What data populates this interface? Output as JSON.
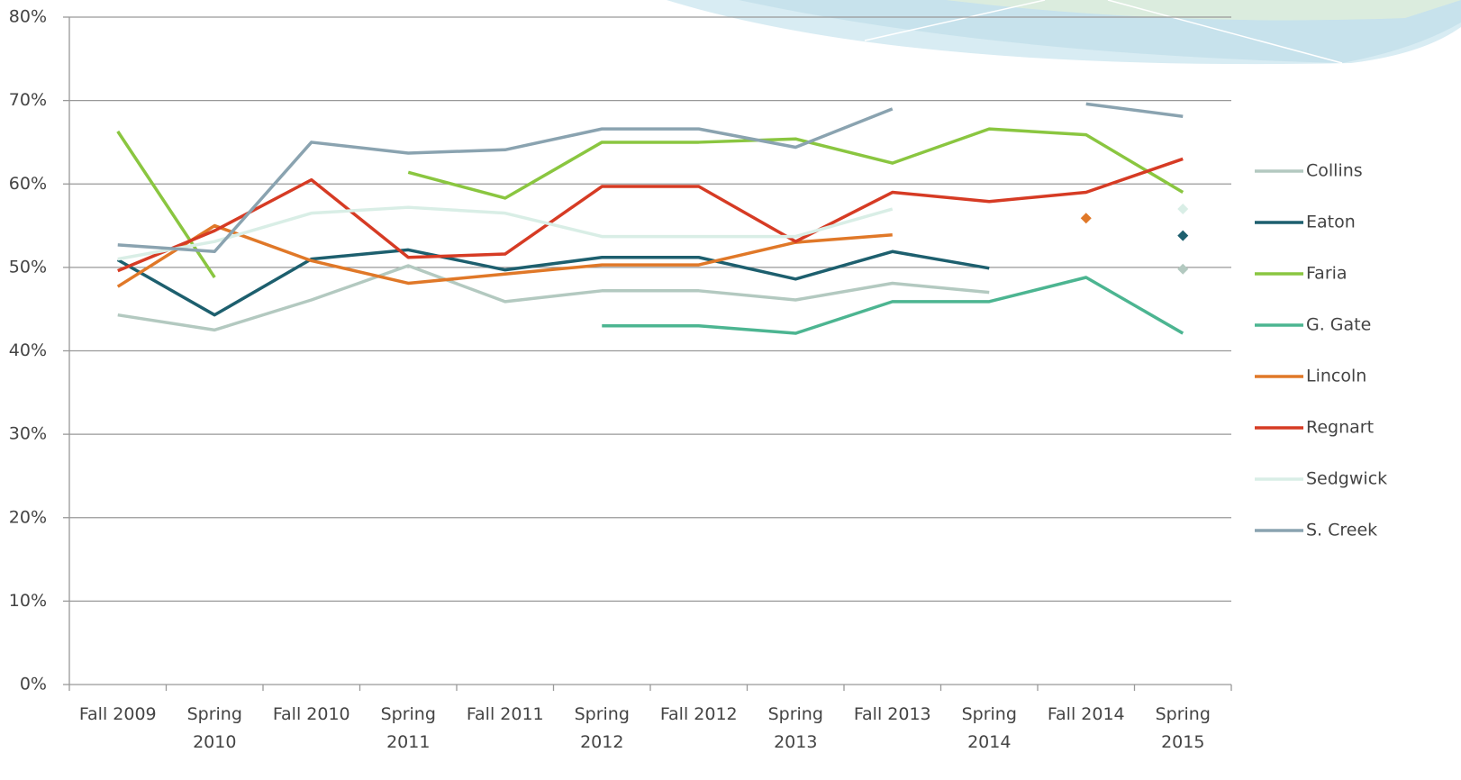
{
  "chart_data": {
    "type": "line",
    "categories": [
      "Fall 2009",
      "Spring 2010",
      "Fall 2010",
      "Spring 2011",
      "Fall 2011",
      "Spring 2012",
      "Fall 2012",
      "Spring 2013",
      "Fall 2013",
      "Spring 2014",
      "Fall 2014",
      "Spring 2015"
    ],
    "series": [
      {
        "name": "Collins",
        "color": "#b3c9c0",
        "values": [
          44.3,
          42.5,
          46.1,
          50.2,
          45.9,
          47.2,
          47.2,
          46.1,
          48.1,
          47.0,
          null,
          49.8
        ]
      },
      {
        "name": "Eaton",
        "color": "#1d5f6e",
        "values": [
          50.9,
          44.3,
          51.0,
          52.1,
          49.7,
          51.2,
          51.2,
          48.6,
          51.9,
          49.9,
          null,
          53.8
        ]
      },
      {
        "name": "Faria",
        "color": "#8ac640",
        "values": [
          66.3,
          48.8,
          null,
          61.4,
          58.3,
          65.0,
          65.0,
          65.4,
          62.5,
          66.6,
          65.9,
          59.0
        ]
      },
      {
        "name": "G. Gate",
        "color": "#4cb591",
        "values": [
          null,
          null,
          null,
          null,
          null,
          43.0,
          43.0,
          42.1,
          45.9,
          45.9,
          48.8,
          42.1
        ]
      },
      {
        "name": "Lincoln",
        "color": "#e07828",
        "values": [
          47.7,
          55.0,
          50.8,
          48.1,
          49.2,
          50.3,
          50.3,
          53.0,
          53.9,
          null,
          55.9,
          null
        ]
      },
      {
        "name": "Regnart",
        "color": "#d63b24",
        "values": [
          49.6,
          54.4,
          60.5,
          51.2,
          51.6,
          59.7,
          59.7,
          53.1,
          59.0,
          57.9,
          59.0,
          63.0
        ]
      },
      {
        "name": "Sedgwick",
        "color": "#d9eee6",
        "values": [
          51.0,
          53.1,
          56.5,
          57.2,
          56.5,
          53.7,
          53.7,
          53.7,
          57.0,
          null,
          null,
          57.0
        ]
      },
      {
        "name": "S. Creek",
        "color": "#8aa3b0",
        "values": [
          52.7,
          51.9,
          65.0,
          63.7,
          64.1,
          66.6,
          66.6,
          64.4,
          69.0,
          null,
          69.6,
          68.1
        ]
      }
    ],
    "ylim": [
      0,
      80
    ],
    "yticks": [
      {
        "value": 0,
        "label": "0%"
      },
      {
        "value": 10,
        "label": "10%"
      },
      {
        "value": 20,
        "label": "20%"
      },
      {
        "value": 30,
        "label": "30%"
      },
      {
        "value": 40,
        "label": "40%"
      },
      {
        "value": 50,
        "label": "50%"
      },
      {
        "value": 60,
        "label": "60%"
      },
      {
        "value": 70,
        "label": "70%"
      },
      {
        "value": 80,
        "label": "80%"
      }
    ],
    "grid": true,
    "legend": "right"
  }
}
